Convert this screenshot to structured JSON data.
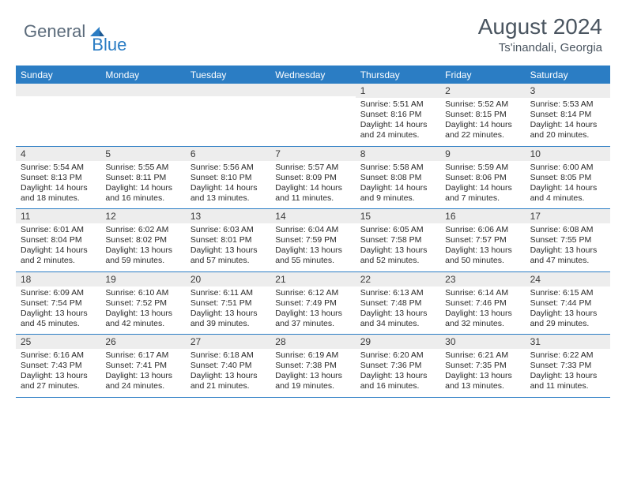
{
  "brand": {
    "part1": "General",
    "part2": "Blue"
  },
  "title": "August 2024",
  "location": "Ts'inandali, Georgia",
  "colors": {
    "accent": "#2b7dc4",
    "logo_gray": "#5a6a7a",
    "header_text": "#4a5560",
    "daybar_bg": "#ededed",
    "body_text": "#2a2a2a"
  },
  "dow": [
    "Sunday",
    "Monday",
    "Tuesday",
    "Wednesday",
    "Thursday",
    "Friday",
    "Saturday"
  ],
  "weeks": [
    [
      {
        "n": "",
        "sr": "",
        "ss": "",
        "dl": ""
      },
      {
        "n": "",
        "sr": "",
        "ss": "",
        "dl": ""
      },
      {
        "n": "",
        "sr": "",
        "ss": "",
        "dl": ""
      },
      {
        "n": "",
        "sr": "",
        "ss": "",
        "dl": ""
      },
      {
        "n": "1",
        "sr": "Sunrise: 5:51 AM",
        "ss": "Sunset: 8:16 PM",
        "dl": "Daylight: 14 hours and 24 minutes."
      },
      {
        "n": "2",
        "sr": "Sunrise: 5:52 AM",
        "ss": "Sunset: 8:15 PM",
        "dl": "Daylight: 14 hours and 22 minutes."
      },
      {
        "n": "3",
        "sr": "Sunrise: 5:53 AM",
        "ss": "Sunset: 8:14 PM",
        "dl": "Daylight: 14 hours and 20 minutes."
      }
    ],
    [
      {
        "n": "4",
        "sr": "Sunrise: 5:54 AM",
        "ss": "Sunset: 8:13 PM",
        "dl": "Daylight: 14 hours and 18 minutes."
      },
      {
        "n": "5",
        "sr": "Sunrise: 5:55 AM",
        "ss": "Sunset: 8:11 PM",
        "dl": "Daylight: 14 hours and 16 minutes."
      },
      {
        "n": "6",
        "sr": "Sunrise: 5:56 AM",
        "ss": "Sunset: 8:10 PM",
        "dl": "Daylight: 14 hours and 13 minutes."
      },
      {
        "n": "7",
        "sr": "Sunrise: 5:57 AM",
        "ss": "Sunset: 8:09 PM",
        "dl": "Daylight: 14 hours and 11 minutes."
      },
      {
        "n": "8",
        "sr": "Sunrise: 5:58 AM",
        "ss": "Sunset: 8:08 PM",
        "dl": "Daylight: 14 hours and 9 minutes."
      },
      {
        "n": "9",
        "sr": "Sunrise: 5:59 AM",
        "ss": "Sunset: 8:06 PM",
        "dl": "Daylight: 14 hours and 7 minutes."
      },
      {
        "n": "10",
        "sr": "Sunrise: 6:00 AM",
        "ss": "Sunset: 8:05 PM",
        "dl": "Daylight: 14 hours and 4 minutes."
      }
    ],
    [
      {
        "n": "11",
        "sr": "Sunrise: 6:01 AM",
        "ss": "Sunset: 8:04 PM",
        "dl": "Daylight: 14 hours and 2 minutes."
      },
      {
        "n": "12",
        "sr": "Sunrise: 6:02 AM",
        "ss": "Sunset: 8:02 PM",
        "dl": "Daylight: 13 hours and 59 minutes."
      },
      {
        "n": "13",
        "sr": "Sunrise: 6:03 AM",
        "ss": "Sunset: 8:01 PM",
        "dl": "Daylight: 13 hours and 57 minutes."
      },
      {
        "n": "14",
        "sr": "Sunrise: 6:04 AM",
        "ss": "Sunset: 7:59 PM",
        "dl": "Daylight: 13 hours and 55 minutes."
      },
      {
        "n": "15",
        "sr": "Sunrise: 6:05 AM",
        "ss": "Sunset: 7:58 PM",
        "dl": "Daylight: 13 hours and 52 minutes."
      },
      {
        "n": "16",
        "sr": "Sunrise: 6:06 AM",
        "ss": "Sunset: 7:57 PM",
        "dl": "Daylight: 13 hours and 50 minutes."
      },
      {
        "n": "17",
        "sr": "Sunrise: 6:08 AM",
        "ss": "Sunset: 7:55 PM",
        "dl": "Daylight: 13 hours and 47 minutes."
      }
    ],
    [
      {
        "n": "18",
        "sr": "Sunrise: 6:09 AM",
        "ss": "Sunset: 7:54 PM",
        "dl": "Daylight: 13 hours and 45 minutes."
      },
      {
        "n": "19",
        "sr": "Sunrise: 6:10 AM",
        "ss": "Sunset: 7:52 PM",
        "dl": "Daylight: 13 hours and 42 minutes."
      },
      {
        "n": "20",
        "sr": "Sunrise: 6:11 AM",
        "ss": "Sunset: 7:51 PM",
        "dl": "Daylight: 13 hours and 39 minutes."
      },
      {
        "n": "21",
        "sr": "Sunrise: 6:12 AM",
        "ss": "Sunset: 7:49 PM",
        "dl": "Daylight: 13 hours and 37 minutes."
      },
      {
        "n": "22",
        "sr": "Sunrise: 6:13 AM",
        "ss": "Sunset: 7:48 PM",
        "dl": "Daylight: 13 hours and 34 minutes."
      },
      {
        "n": "23",
        "sr": "Sunrise: 6:14 AM",
        "ss": "Sunset: 7:46 PM",
        "dl": "Daylight: 13 hours and 32 minutes."
      },
      {
        "n": "24",
        "sr": "Sunrise: 6:15 AM",
        "ss": "Sunset: 7:44 PM",
        "dl": "Daylight: 13 hours and 29 minutes."
      }
    ],
    [
      {
        "n": "25",
        "sr": "Sunrise: 6:16 AM",
        "ss": "Sunset: 7:43 PM",
        "dl": "Daylight: 13 hours and 27 minutes."
      },
      {
        "n": "26",
        "sr": "Sunrise: 6:17 AM",
        "ss": "Sunset: 7:41 PM",
        "dl": "Daylight: 13 hours and 24 minutes."
      },
      {
        "n": "27",
        "sr": "Sunrise: 6:18 AM",
        "ss": "Sunset: 7:40 PM",
        "dl": "Daylight: 13 hours and 21 minutes."
      },
      {
        "n": "28",
        "sr": "Sunrise: 6:19 AM",
        "ss": "Sunset: 7:38 PM",
        "dl": "Daylight: 13 hours and 19 minutes."
      },
      {
        "n": "29",
        "sr": "Sunrise: 6:20 AM",
        "ss": "Sunset: 7:36 PM",
        "dl": "Daylight: 13 hours and 16 minutes."
      },
      {
        "n": "30",
        "sr": "Sunrise: 6:21 AM",
        "ss": "Sunset: 7:35 PM",
        "dl": "Daylight: 13 hours and 13 minutes."
      },
      {
        "n": "31",
        "sr": "Sunrise: 6:22 AM",
        "ss": "Sunset: 7:33 PM",
        "dl": "Daylight: 13 hours and 11 minutes."
      }
    ]
  ]
}
